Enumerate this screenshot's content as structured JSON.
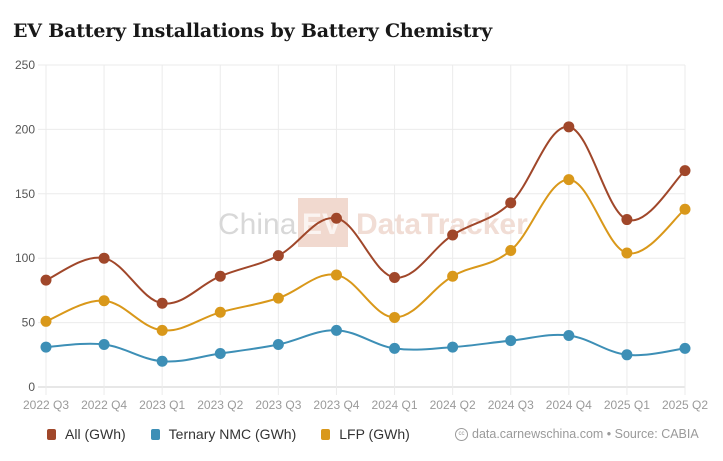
{
  "title": "EV Battery Installations by Battery Chemistry",
  "watermark": {
    "left": "China",
    "box": "EV",
    "right": "DataTracker"
  },
  "legend": [
    {
      "label": "All (GWh)",
      "color": "#a0472a"
    },
    {
      "label": "Ternary NMC (GWh)",
      "color": "#3d8fb6"
    },
    {
      "label": "LFP (GWh)",
      "color": "#d9981a"
    }
  ],
  "source": {
    "icon": "creative-commons-icon",
    "cc_text": "cc",
    "text": "data.carnewschina.com • Source: CABIA"
  },
  "chart_data": {
    "type": "line",
    "title": "EV Battery Installations by Battery Chemistry",
    "xlabel": "",
    "ylabel": "",
    "ylim": [
      0,
      250
    ],
    "yticks": [
      0,
      50,
      100,
      150,
      200,
      250
    ],
    "grid": true,
    "legend_position": "bottom",
    "categories": [
      "2022 Q3",
      "2022 Q4",
      "2023 Q1",
      "2023 Q2",
      "2023 Q3",
      "2023 Q4",
      "2024 Q1",
      "2024 Q2",
      "2024 Q3",
      "2024 Q4",
      "2025 Q1",
      "2025 Q2"
    ],
    "series": [
      {
        "name": "All (GWh)",
        "color": "#a0472a",
        "values": [
          83,
          100,
          65,
          86,
          102,
          131,
          85,
          118,
          143,
          202,
          130,
          168
        ]
      },
      {
        "name": "Ternary NMC (GWh)",
        "color": "#3d8fb6",
        "values": [
          31,
          33,
          20,
          26,
          33,
          44,
          30,
          31,
          36,
          40,
          25,
          30
        ]
      },
      {
        "name": "LFP (GWh)",
        "color": "#d9981a",
        "values": [
          51,
          67,
          44,
          58,
          69,
          87,
          54,
          86,
          106,
          161,
          104,
          138
        ]
      }
    ]
  }
}
